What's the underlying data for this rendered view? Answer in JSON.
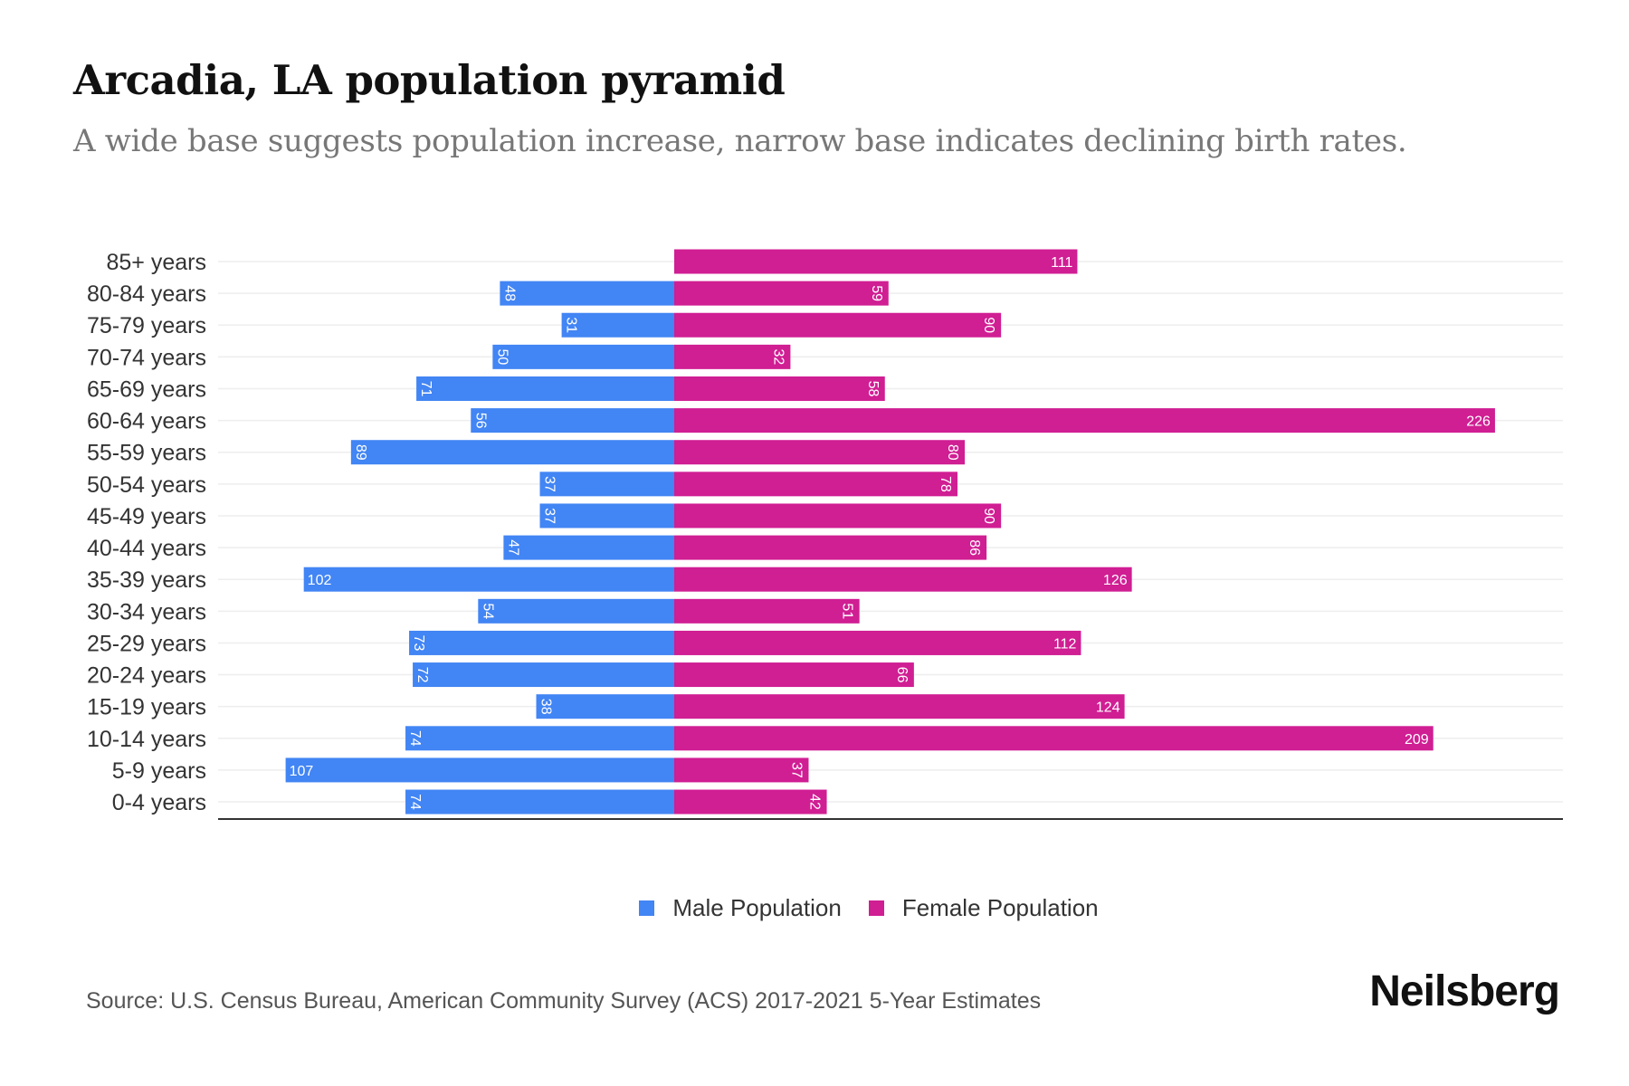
{
  "title": "Arcadia, LA population pyramid",
  "subtitle": "A wide base suggests population increase, narrow base indicates declining birth rates.",
  "source": "Source: U.S. Census Bureau, American Community Survey (ACS) 2017-2021 5-Year Estimates",
  "logo": "Neilsberg",
  "colors": {
    "male": "#4285f4",
    "female": "#d01e93"
  },
  "chart_data": {
    "type": "bar",
    "orientation": "horizontal-pyramid",
    "categories": [
      "85+ years",
      "80-84 years",
      "75-79 years",
      "70-74 years",
      "65-69 years",
      "60-64 years",
      "55-59 years",
      "50-54 years",
      "45-49 years",
      "40-44 years",
      "35-39 years",
      "30-34 years",
      "25-29 years",
      "20-24 years",
      "15-19 years",
      "10-14 years",
      "5-9 years",
      "0-4 years"
    ],
    "series": [
      {
        "name": "Male Population",
        "values": [
          0,
          48,
          31,
          50,
          71,
          56,
          89,
          37,
          37,
          47,
          102,
          54,
          73,
          72,
          38,
          74,
          107,
          74
        ]
      },
      {
        "name": "Female Population",
        "values": [
          111,
          59,
          90,
          32,
          58,
          226,
          80,
          78,
          90,
          86,
          126,
          51,
          112,
          66,
          124,
          209,
          37,
          42
        ]
      }
    ],
    "legend": "bottom-center",
    "grid": true
  }
}
